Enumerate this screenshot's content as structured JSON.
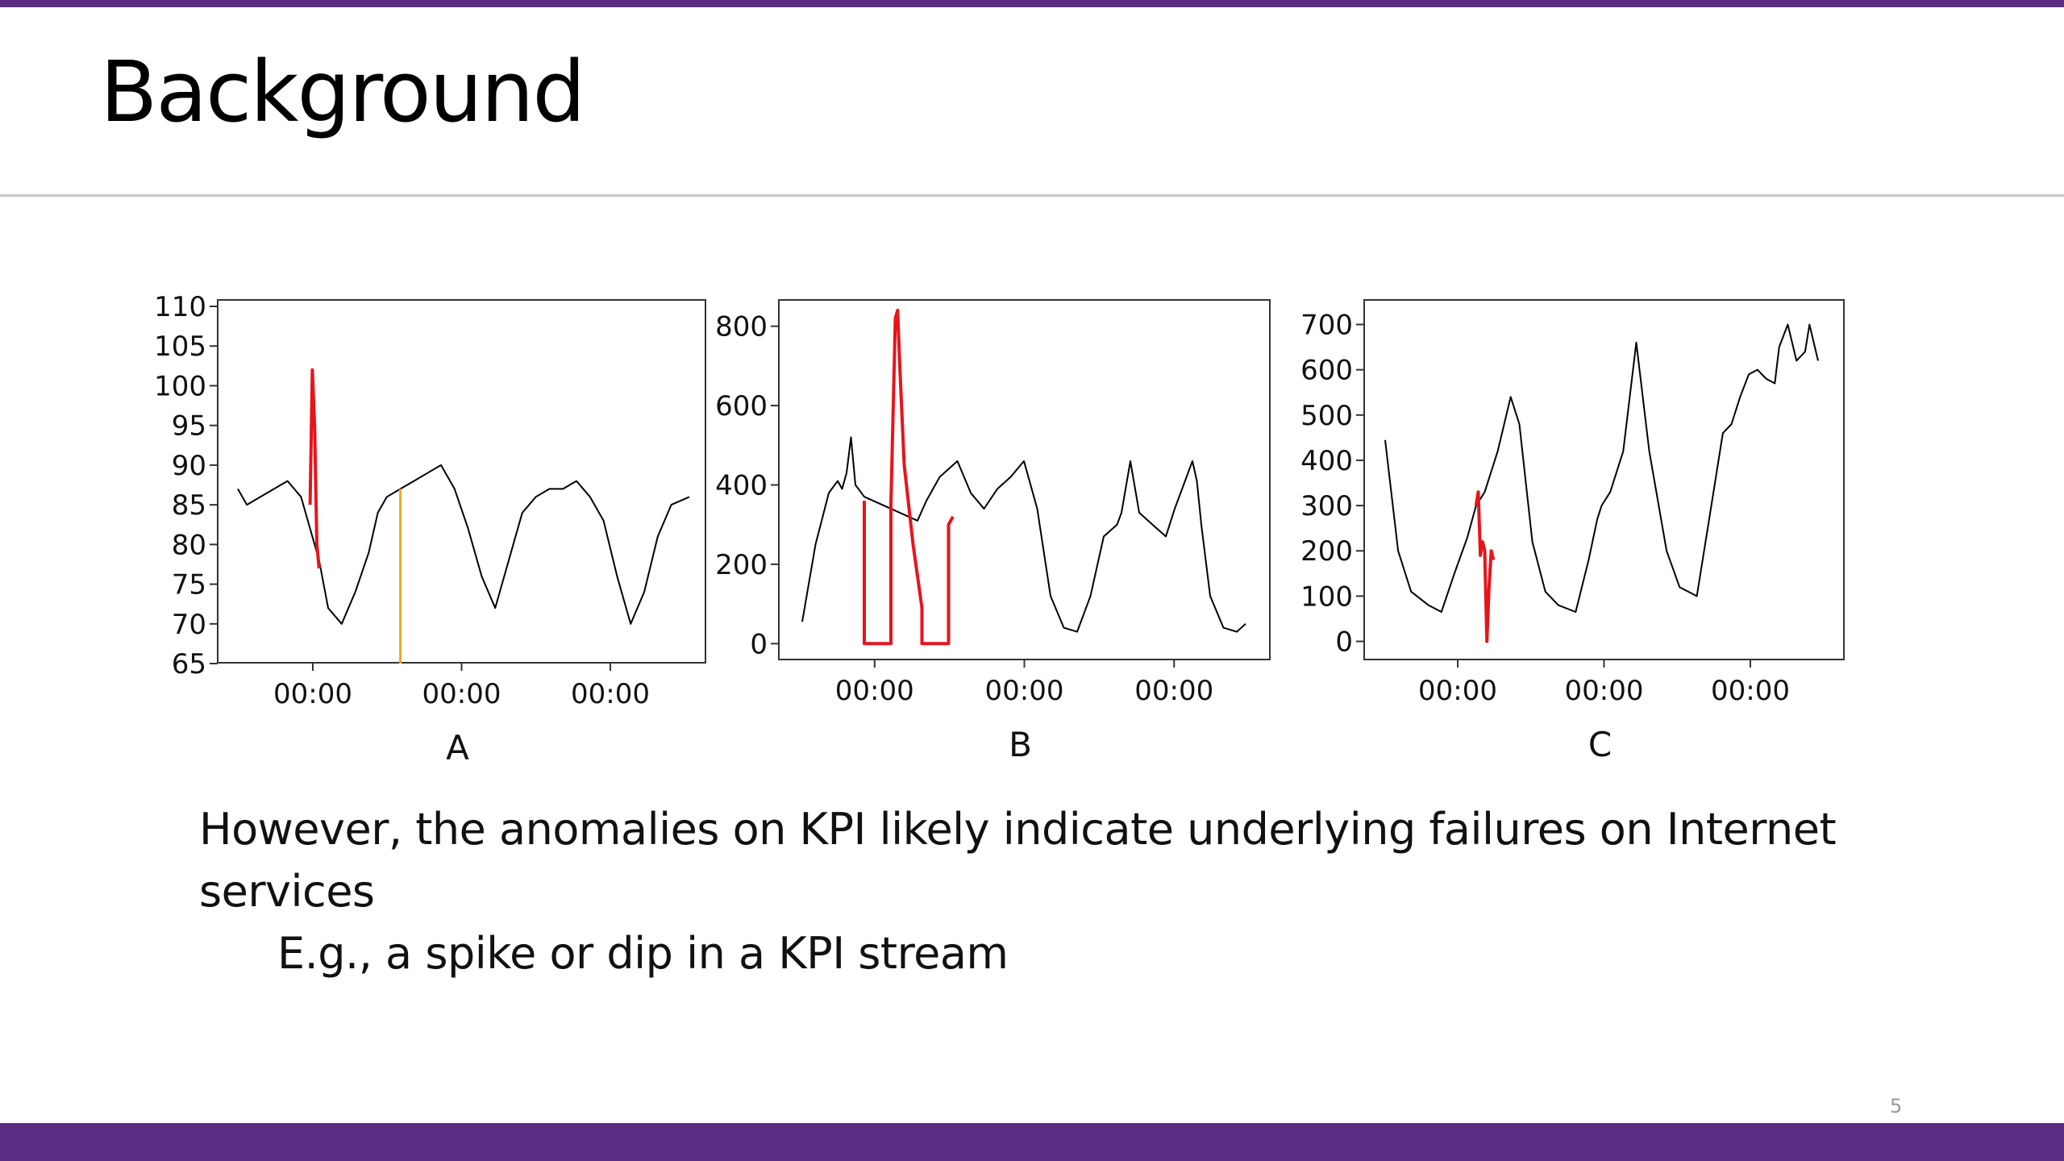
{
  "slide": {
    "title": "Background",
    "page_number": "5",
    "bullets": [
      "However, the anomalies on KPI likely indicate underlying failures on Internet services",
      "E.g., a spike or dip in a KPI stream"
    ],
    "colors": {
      "accent_bar": "#5b2d82",
      "normal_series": "#000000",
      "anomaly": "#e8141a",
      "marker": "#f5a623"
    }
  },
  "chart_data": [
    {
      "type": "line",
      "caption": "A",
      "ylim": [
        65,
        110
      ],
      "yticks": [
        65,
        70,
        75,
        80,
        85,
        90,
        95,
        100,
        105,
        110
      ],
      "xtick_labels": [
        "00:00",
        "00:00",
        "00:00"
      ],
      "normal_series": {
        "x": [
          0.0,
          0.02,
          0.05,
          0.08,
          0.11,
          0.14,
          0.16,
          0.17,
          0.18,
          0.2,
          0.23,
          0.26,
          0.29,
          0.31,
          0.33,
          0.36,
          0.39,
          0.42,
          0.45,
          0.48,
          0.51,
          0.54,
          0.57,
          0.6,
          0.63,
          0.66,
          0.69,
          0.72,
          0.75,
          0.78,
          0.81,
          0.84,
          0.87,
          0.9,
          0.93,
          0.96,
          1.0
        ],
        "y": [
          87,
          85,
          86,
          87,
          88,
          86,
          82,
          80,
          78,
          72,
          70,
          74,
          79,
          84,
          86,
          87,
          88,
          89,
          90,
          87,
          82,
          76,
          72,
          78,
          84,
          86,
          87,
          87,
          88,
          86,
          83,
          76,
          70,
          74,
          81,
          85,
          86
        ]
      },
      "anomaly_segments": [
        {
          "x": [
            0.16,
            0.165,
            0.17,
            0.175,
            0.18
          ],
          "y": [
            85,
            102,
            95,
            80,
            77
          ]
        }
      ],
      "marker_lines": [
        {
          "x": 0.36,
          "y": [
            65,
            87
          ]
        }
      ]
    },
    {
      "type": "line",
      "caption": "B",
      "ylim": [
        -40,
        850
      ],
      "yticks": [
        0,
        200,
        400,
        600,
        800
      ],
      "xtick_labels": [
        "00:00",
        "00:00",
        "00:00"
      ],
      "normal_series": {
        "x": [
          0.0,
          0.03,
          0.06,
          0.08,
          0.09,
          0.1,
          0.11,
          0.12,
          0.13,
          0.14,
          0.16,
          0.26,
          0.28,
          0.31,
          0.35,
          0.38,
          0.41,
          0.44,
          0.47,
          0.5,
          0.53,
          0.56,
          0.59,
          0.62,
          0.65,
          0.68,
          0.71,
          0.72,
          0.74,
          0.76,
          0.79,
          0.82,
          0.84,
          0.86,
          0.88,
          0.89,
          0.9,
          0.92,
          0.95,
          0.98,
          1.0
        ],
        "y": [
          55,
          250,
          380,
          410,
          390,
          430,
          520,
          400,
          385,
          370,
          360,
          310,
          360,
          420,
          460,
          380,
          340,
          390,
          420,
          460,
          340,
          120,
          40,
          30,
          120,
          270,
          300,
          330,
          460,
          330,
          300,
          270,
          340,
          400,
          460,
          410,
          300,
          120,
          40,
          30,
          50
        ]
      },
      "anomaly_segments": [
        {
          "x": [
            0.14,
            0.14,
            0.2,
            0.2,
            0.21,
            0.215,
            0.22,
            0.23,
            0.25,
            0.27,
            0.27,
            0.33,
            0.33,
            0.34
          ],
          "y": [
            360,
            0,
            0,
            350,
            820,
            840,
            700,
            450,
            250,
            90,
            0,
            0,
            300,
            320
          ]
        }
      ]
    },
    {
      "type": "line",
      "caption": "C",
      "ylim": [
        -40,
        740
      ],
      "yticks": [
        0,
        100,
        200,
        300,
        400,
        500,
        600,
        700
      ],
      "xtick_labels": [
        "00:00",
        "00:00",
        "00:00"
      ],
      "normal_series": {
        "x": [
          0.0,
          0.03,
          0.06,
          0.1,
          0.13,
          0.16,
          0.19,
          0.21,
          0.23,
          0.26,
          0.29,
          0.31,
          0.34,
          0.37,
          0.4,
          0.44,
          0.47,
          0.49,
          0.5,
          0.52,
          0.55,
          0.58,
          0.61,
          0.65,
          0.68,
          0.72,
          0.75,
          0.78,
          0.8,
          0.82,
          0.84,
          0.86,
          0.88,
          0.9,
          0.91,
          0.93,
          0.95,
          0.97,
          0.98,
          1.0
        ],
        "y": [
          445,
          200,
          110,
          80,
          65,
          150,
          230,
          300,
          330,
          420,
          540,
          480,
          220,
          110,
          80,
          65,
          180,
          270,
          300,
          330,
          420,
          660,
          420,
          200,
          120,
          100,
          280,
          460,
          480,
          540,
          590,
          600,
          580,
          570,
          650,
          700,
          620,
          640,
          700,
          620
        ]
      },
      "anomaly_segments": [
        {
          "x": [
            0.21,
            0.215,
            0.22,
            0.225,
            0.23,
            0.235,
            0.24,
            0.245,
            0.25
          ],
          "y": [
            300,
            330,
            190,
            220,
            200,
            0,
            120,
            200,
            180
          ]
        }
      ]
    }
  ]
}
